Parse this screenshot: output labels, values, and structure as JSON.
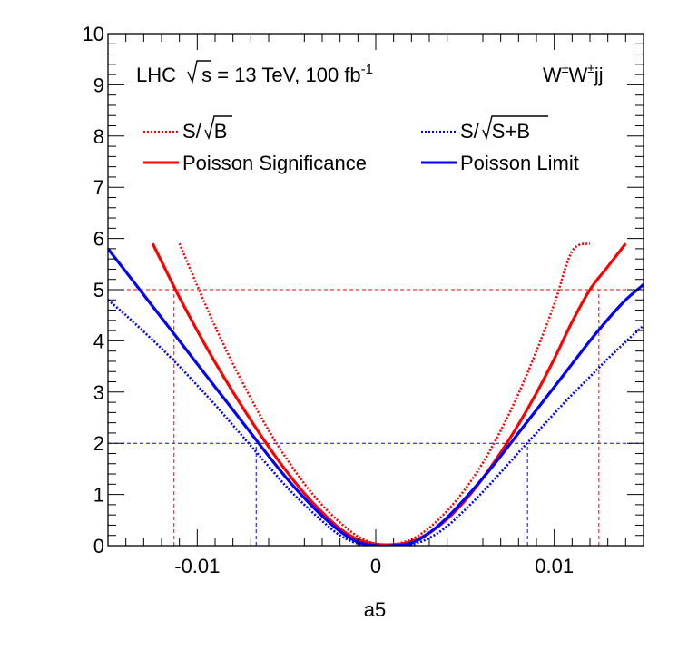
{
  "chart_data": {
    "type": "line",
    "title": "",
    "xlabel": "a5",
    "ylabel": "",
    "xlim": [
      -0.015,
      0.015
    ],
    "ylim": [
      0,
      10
    ],
    "x_ticks": [
      {
        "value": -0.01,
        "label": "-0.01"
      },
      {
        "value": 0,
        "label": "0"
      },
      {
        "value": 0.01,
        "label": "0.01"
      }
    ],
    "y_ticks": [
      {
        "value": 0,
        "label": "0"
      },
      {
        "value": 1,
        "label": "1"
      },
      {
        "value": 2,
        "label": "2"
      },
      {
        "value": 3,
        "label": "3"
      },
      {
        "value": 4,
        "label": "4"
      },
      {
        "value": 5,
        "label": "5"
      },
      {
        "value": 6,
        "label": "6"
      },
      {
        "value": 7,
        "label": "7"
      },
      {
        "value": 8,
        "label": "8"
      },
      {
        "value": 9,
        "label": "9"
      },
      {
        "value": 10,
        "label": "10"
      }
    ],
    "annotations": {
      "lhc_prefix": "LHC ",
      "sqrt_s": "s",
      "lhc_suffix": " = 13 TeV, 100 fb",
      "lhc_exp": "-1",
      "process_w1": "W",
      "process_pm1": "±",
      "process_w2": "W",
      "process_pm2": "±",
      "process_jj": "jj"
    },
    "series": [
      {
        "name": "S/√B",
        "legend_main": "S/",
        "legend_root": "B",
        "color": "#ff0000",
        "style": "dotted",
        "x": [
          -0.011,
          -0.01,
          -0.009,
          -0.008,
          -0.007,
          -0.006,
          -0.005,
          -0.004,
          -0.003,
          -0.002,
          -0.001,
          0.0,
          0.0006,
          0.001,
          0.002,
          0.003,
          0.004,
          0.005,
          0.006,
          0.007,
          0.008,
          0.009,
          0.01,
          0.011,
          0.012
        ],
        "y": [
          5.9,
          5.08,
          4.28,
          3.55,
          2.88,
          2.25,
          1.7,
          1.21,
          0.79,
          0.45,
          0.18,
          0.03,
          0.0,
          0.02,
          0.12,
          0.35,
          0.68,
          1.1,
          1.62,
          2.25,
          2.97,
          3.8,
          4.72,
          5.75,
          5.9
        ]
      },
      {
        "name": "S/√(S+B)",
        "legend_main": "S/",
        "legend_root": "S+B",
        "color": "#0000ff",
        "style": "dotted",
        "x": [
          -0.015,
          -0.014,
          -0.013,
          -0.012,
          -0.011,
          -0.01,
          -0.009,
          -0.008,
          -0.007,
          -0.006,
          -0.005,
          -0.004,
          -0.003,
          -0.002,
          -0.001,
          0.0,
          0.001,
          0.002,
          0.003,
          0.004,
          0.005,
          0.006,
          0.007,
          0.008,
          0.009,
          0.01,
          0.011,
          0.012,
          0.013,
          0.014,
          0.015
        ],
        "y": [
          4.8,
          4.5,
          4.18,
          3.85,
          3.5,
          3.13,
          2.75,
          2.35,
          1.95,
          1.55,
          1.15,
          0.8,
          0.48,
          0.2,
          0.04,
          0.0,
          0.0,
          0.02,
          0.15,
          0.38,
          0.7,
          1.05,
          1.43,
          1.82,
          2.2,
          2.58,
          2.95,
          3.3,
          3.65,
          3.98,
          4.3
        ]
      },
      {
        "name": "Poisson Significance",
        "color": "#ff0000",
        "style": "solid",
        "x": [
          -0.0125,
          -0.012,
          -0.011,
          -0.01,
          -0.009,
          -0.008,
          -0.007,
          -0.006,
          -0.005,
          -0.004,
          -0.003,
          -0.002,
          -0.001,
          0.0,
          0.001,
          0.002,
          0.003,
          0.004,
          0.005,
          0.006,
          0.007,
          0.008,
          0.009,
          0.01,
          0.011,
          0.012,
          0.013,
          0.014
        ],
        "y": [
          5.9,
          5.55,
          4.85,
          4.2,
          3.58,
          3.0,
          2.45,
          1.93,
          1.45,
          1.02,
          0.65,
          0.33,
          0.12,
          0.03,
          0.02,
          0.08,
          0.25,
          0.52,
          0.88,
          1.32,
          1.82,
          2.37,
          2.98,
          3.65,
          4.37,
          5.0,
          5.45,
          5.9
        ]
      },
      {
        "name": "Poisson Limit",
        "color": "#0000ff",
        "style": "solid",
        "x": [
          -0.015,
          -0.014,
          -0.013,
          -0.012,
          -0.011,
          -0.01,
          -0.009,
          -0.008,
          -0.007,
          -0.006,
          -0.005,
          -0.004,
          -0.003,
          -0.002,
          -0.001,
          0.0,
          0.001,
          0.002,
          0.003,
          0.004,
          0.005,
          0.006,
          0.007,
          0.008,
          0.009,
          0.01,
          0.011,
          0.012,
          0.013,
          0.014,
          0.015
        ],
        "y": [
          5.8,
          5.35,
          4.9,
          4.45,
          4.0,
          3.55,
          3.1,
          2.65,
          2.2,
          1.75,
          1.32,
          0.93,
          0.58,
          0.28,
          0.07,
          0.0,
          0.0,
          0.05,
          0.25,
          0.55,
          0.92,
          1.32,
          1.75,
          2.2,
          2.65,
          3.1,
          3.55,
          4.0,
          4.42,
          4.8,
          5.1
        ]
      }
    ],
    "reference_lines": [
      {
        "name": "significance-5-line",
        "orientation": "horizontal",
        "value": 5,
        "color": "#ff0000"
      },
      {
        "name": "limit-2-line",
        "orientation": "horizontal",
        "value": 2,
        "color": "#0000ff"
      },
      {
        "name": "significance-left-crossing",
        "orientation": "vertical",
        "value": -0.0113,
        "to": 5,
        "color": "#ff0000"
      },
      {
        "name": "significance-right-crossing",
        "orientation": "vertical",
        "value": 0.0125,
        "to": 5,
        "color": "#ff0000"
      },
      {
        "name": "limit-left-crossing",
        "orientation": "vertical",
        "value": -0.0067,
        "to": 2,
        "color": "#0000ff"
      },
      {
        "name": "limit-right-crossing",
        "orientation": "vertical",
        "value": 0.0085,
        "to": 2,
        "color": "#0000ff"
      }
    ]
  }
}
